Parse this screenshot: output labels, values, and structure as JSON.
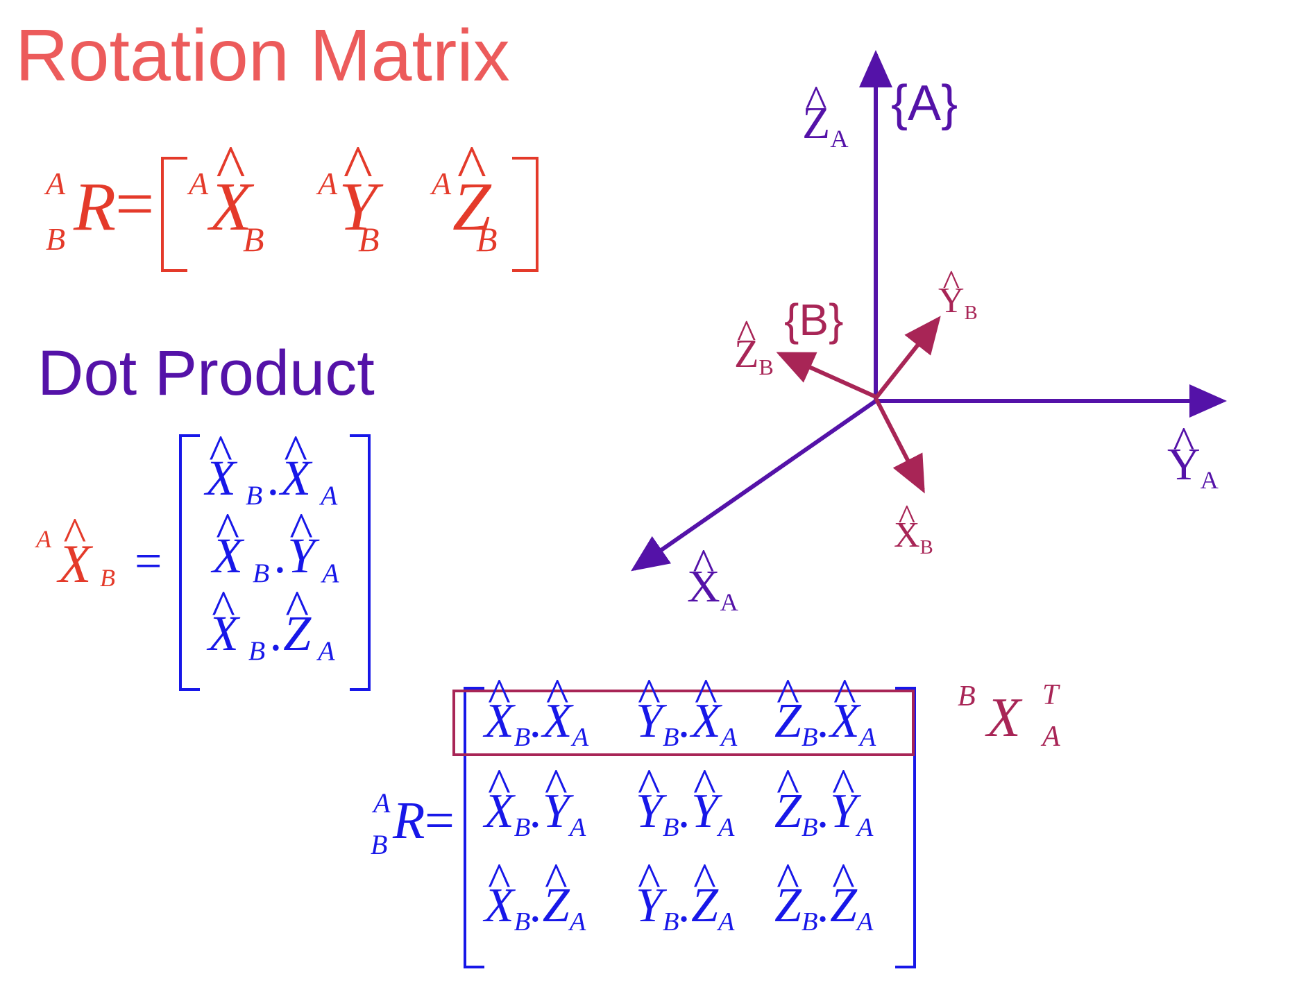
{
  "title": "Rotation Matrix",
  "dot_product_title": "Dot Product",
  "colors": {
    "title": "#ec5b5b",
    "red": "#e43a2a",
    "purple": "#5412a8",
    "maroon": "#a82556",
    "blue": "#1717e8"
  },
  "eq1": {
    "lhs_sup": "A",
    "lhs_sub": "B",
    "lhs_main": "R",
    "equals": "=",
    "cols": [
      {
        "sup": "A",
        "main": "X",
        "hat": "^",
        "sub": "B"
      },
      {
        "sup": "A",
        "main": "Y",
        "hat": "^",
        "sub": "B"
      },
      {
        "sup": "A",
        "main": "Z",
        "hat": "^",
        "sub": "B"
      }
    ]
  },
  "eq2": {
    "lhs_sup": "A",
    "lhs_main": "X",
    "lhs_hat": "^",
    "lhs_sub": "B",
    "equals": "=",
    "rows": [
      {
        "a": "X",
        "a_sub": "B",
        "dot": ".",
        "b": "X",
        "b_sub": "A"
      },
      {
        "a": "X",
        "a_sub": "B",
        "dot": ".",
        "b": "Y",
        "b_sub": "A"
      },
      {
        "a": "X",
        "a_sub": "B",
        "dot": ".",
        "b": "Z",
        "b_sub": "A"
      }
    ]
  },
  "eq3": {
    "lhs_sup": "A",
    "lhs_sub": "B",
    "lhs_main": "R",
    "equals": "=",
    "rows": [
      [
        {
          "a": "X",
          "a_sub": "B",
          "b": "X",
          "b_sub": "A"
        },
        {
          "a": "Y",
          "a_sub": "B",
          "b": "X",
          "b_sub": "A"
        },
        {
          "a": "Z",
          "a_sub": "B",
          "b": "X",
          "b_sub": "A"
        }
      ],
      [
        {
          "a": "X",
          "a_sub": "B",
          "b": "Y",
          "b_sub": "A"
        },
        {
          "a": "Y",
          "a_sub": "B",
          "b": "Y",
          "b_sub": "A"
        },
        {
          "a": "Z",
          "a_sub": "B",
          "b": "Y",
          "b_sub": "A"
        }
      ],
      [
        {
          "a": "X",
          "a_sub": "B",
          "b": "Z",
          "b_sub": "A"
        },
        {
          "a": "Y",
          "a_sub": "B",
          "b": "Z",
          "b_sub": "A"
        },
        {
          "a": "Z",
          "a_sub": "B",
          "b": "Z",
          "b_sub": "A"
        }
      ]
    ],
    "dot": "."
  },
  "transpose_label": {
    "sup": "B",
    "main": "X",
    "sub": "A",
    "sup_right": "T"
  },
  "frames": {
    "A": {
      "label": "{A}",
      "axes": [
        {
          "name": "Z",
          "sub": "A",
          "hat": "^"
        },
        {
          "name": "Y",
          "sub": "A",
          "hat": "^"
        },
        {
          "name": "X",
          "sub": "A",
          "hat": "^"
        }
      ]
    },
    "B": {
      "label": "{B}",
      "axes": [
        {
          "name": "Z",
          "sub": "B",
          "hat": "^"
        },
        {
          "name": "Y",
          "sub": "B",
          "hat": "^"
        },
        {
          "name": "X",
          "sub": "B",
          "hat": "^"
        }
      ]
    }
  }
}
